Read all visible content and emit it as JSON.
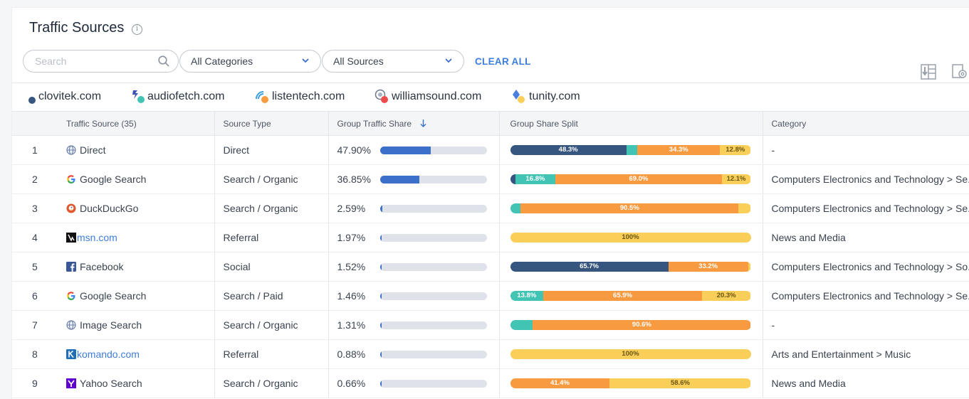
{
  "header": {
    "title": "Traffic Sources"
  },
  "filters": {
    "search_placeholder": "Search",
    "category_dropdown": "All Categories",
    "source_dropdown": "All Sources",
    "clear_all": "CLEAR ALL"
  },
  "legend": [
    {
      "name": "clovitek.com",
      "color": "#36567f"
    },
    {
      "name": "audiofetch.com",
      "color": "#42c4b5"
    },
    {
      "name": "listentech.com",
      "color": "#f79a40"
    },
    {
      "name": "williamsound.com",
      "color": "#ea4c4c"
    },
    {
      "name": "tunity.com",
      "color": "#f9cf5a"
    }
  ],
  "table": {
    "headers": {
      "source": "Traffic Source (35)",
      "type": "Source Type",
      "share": "Group Traffic Share",
      "split": "Group Share Split",
      "category": "Category"
    },
    "rows": [
      {
        "num": "1",
        "icon": "globe-icon",
        "source": "Direct",
        "link": false,
        "type": "Direct",
        "share": "47.90%",
        "share_frac": 0.479,
        "split": [
          {
            "c": 0,
            "v": 48.3,
            "label": "48.3%"
          },
          {
            "c": 1,
            "v": 4.6,
            "label": ""
          },
          {
            "c": 2,
            "v": 34.3,
            "label": "34.3%"
          },
          {
            "c": 3,
            "v": 12.8,
            "label": "12.8%"
          }
        ],
        "category": "-"
      },
      {
        "num": "2",
        "icon": "google-icon",
        "source": "Google Search",
        "link": false,
        "type": "Search / Organic",
        "share": "36.85%",
        "share_frac": 0.3685,
        "split": [
          {
            "c": 0,
            "v": 2.1,
            "label": ""
          },
          {
            "c": 1,
            "v": 16.8,
            "label": "16.8%"
          },
          {
            "c": 2,
            "v": 69.0,
            "label": "69.0%"
          },
          {
            "c": 3,
            "v": 12.1,
            "label": "12.1%"
          }
        ],
        "category": "Computers Electronics and Technology > Se..."
      },
      {
        "num": "3",
        "icon": "duckduckgo-icon",
        "source": "DuckDuckGo",
        "link": false,
        "type": "Search / Organic",
        "share": "2.59%",
        "share_frac": 0.0259,
        "split": [
          {
            "c": 1,
            "v": 4.4,
            "label": ""
          },
          {
            "c": 2,
            "v": 90.5,
            "label": "90.5%"
          },
          {
            "c": 3,
            "v": 5.1,
            "label": ""
          }
        ],
        "category": "Computers Electronics and Technology > Se..."
      },
      {
        "num": "4",
        "icon": "msn-icon",
        "source": "msn.com",
        "link": true,
        "type": "Referral",
        "share": "1.97%",
        "share_frac": 0.0197,
        "split": [
          {
            "c": 3,
            "v": 100,
            "label": "100%"
          }
        ],
        "category": "News and Media"
      },
      {
        "num": "5",
        "icon": "facebook-icon",
        "source": "Facebook",
        "link": false,
        "type": "Social",
        "share": "1.52%",
        "share_frac": 0.0152,
        "split": [
          {
            "c": 0,
            "v": 65.7,
            "label": "65.7%"
          },
          {
            "c": 2,
            "v": 33.2,
            "label": "33.2%"
          },
          {
            "c": 3,
            "v": 1.1,
            "label": ""
          }
        ],
        "category": "Computers Electronics and Technology > So..."
      },
      {
        "num": "6",
        "icon": "google-icon",
        "source": "Google Search",
        "link": false,
        "type": "Search / Paid",
        "share": "1.46%",
        "share_frac": 0.0146,
        "split": [
          {
            "c": 1,
            "v": 13.8,
            "label": "13.8%"
          },
          {
            "c": 2,
            "v": 65.9,
            "label": "65.9%"
          },
          {
            "c": 3,
            "v": 20.3,
            "label": "20.3%"
          }
        ],
        "category": "Computers Electronics and Technology > Se..."
      },
      {
        "num": "7",
        "icon": "globe-icon",
        "source": "Image Search",
        "link": false,
        "type": "Search / Organic",
        "share": "1.31%",
        "share_frac": 0.0131,
        "split": [
          {
            "c": 1,
            "v": 9.4,
            "label": ""
          },
          {
            "c": 2,
            "v": 90.6,
            "label": "90.6%"
          }
        ],
        "category": "-"
      },
      {
        "num": "8",
        "icon": "komando-icon",
        "source": "komando.com",
        "link": true,
        "type": "Referral",
        "share": "0.88%",
        "share_frac": 0.0088,
        "split": [
          {
            "c": 3,
            "v": 100,
            "label": "100%"
          }
        ],
        "category": "Arts and Entertainment > Music"
      },
      {
        "num": "9",
        "icon": "yahoo-icon",
        "source": "Yahoo Search",
        "link": false,
        "type": "Search / Organic",
        "share": "0.66%",
        "share_frac": 0.0066,
        "split": [
          {
            "c": 2,
            "v": 41.4,
            "label": "41.4%"
          },
          {
            "c": 3,
            "v": 58.6,
            "label": "58.6%"
          }
        ],
        "category": "News and Media"
      }
    ]
  }
}
